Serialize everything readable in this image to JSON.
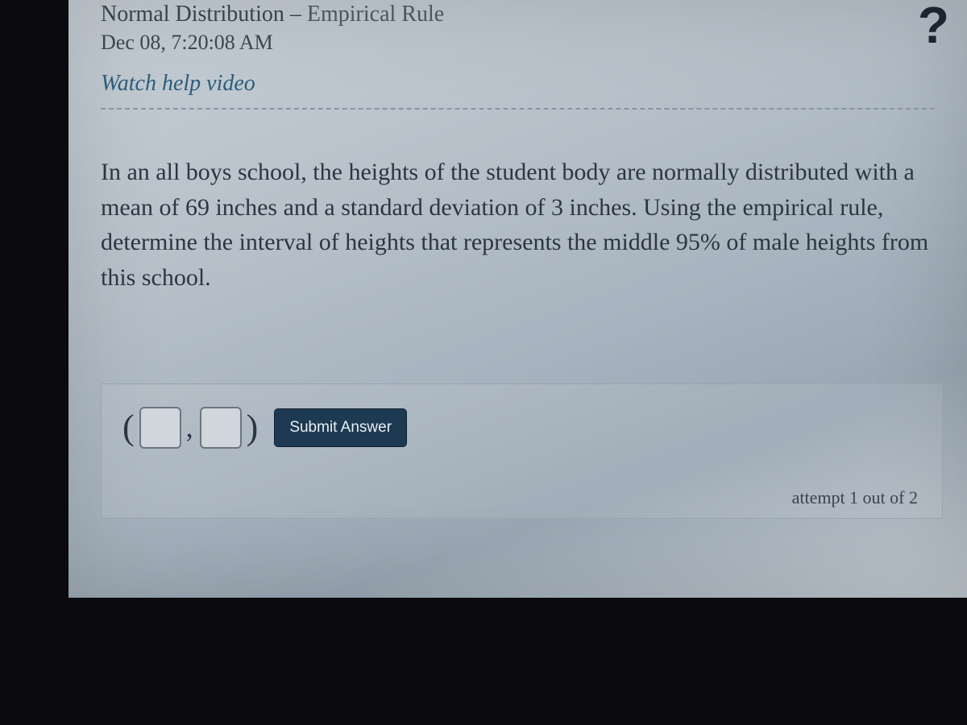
{
  "header": {
    "title_main": "Normal Distribution",
    "title_sep": " – ",
    "title_sub": "Empirical Rule",
    "timestamp": "Dec 08, 7:20:08 AM",
    "help_link": "Watch help video",
    "help_icon_glyph": "?"
  },
  "question": {
    "text": "In an all boys school, the heights of the student body are normally distributed with a mean of 69 inches and a standard deviation of 3 inches. Using the empirical rule, determine the interval of heights that represents the middle 95% of male heights from this school."
  },
  "answer": {
    "open_paren": "(",
    "comma": ",",
    "close_paren": ")",
    "input1_value": "",
    "input2_value": "",
    "submit_label": "Submit Answer",
    "attempt_text": "attempt 1 out of 2"
  },
  "colors": {
    "panel_bg_start": "#c7cfd6",
    "panel_bg_end": "#9aa7b3",
    "text": "#2c3640",
    "link": "#2d5d7a",
    "button_bg": "#1e3a52",
    "button_text": "#e8eef3",
    "input_border": "#6b7680",
    "divider": "#8a95a0",
    "page_bg": "#0a0a0f"
  }
}
